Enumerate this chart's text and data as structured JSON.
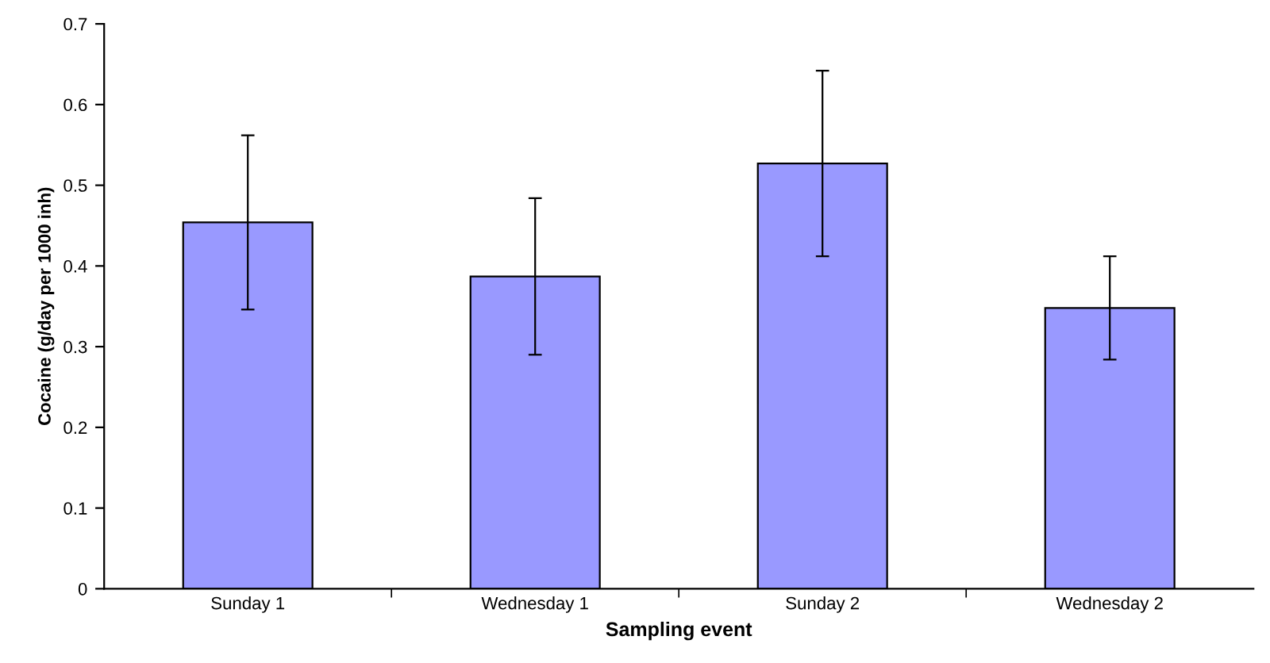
{
  "chart_data": {
    "type": "bar",
    "xlabel": "Sampling event",
    "ylabel": "Cocaine (g/day per 1000 inh)",
    "categories": [
      "Sunday 1",
      "Wednesday 1",
      "Sunday 2",
      "Wednesday 2"
    ],
    "values": [
      0.454,
      0.387,
      0.527,
      0.348
    ],
    "errors": [
      0.108,
      0.097,
      0.115,
      0.064
    ],
    "color": "#9999ff",
    "ylim": [
      0,
      0.7
    ],
    "yticks": [
      0,
      0.1,
      0.2,
      0.3,
      0.4,
      0.5,
      0.6,
      0.7
    ],
    "grid": false,
    "legend": false
  }
}
